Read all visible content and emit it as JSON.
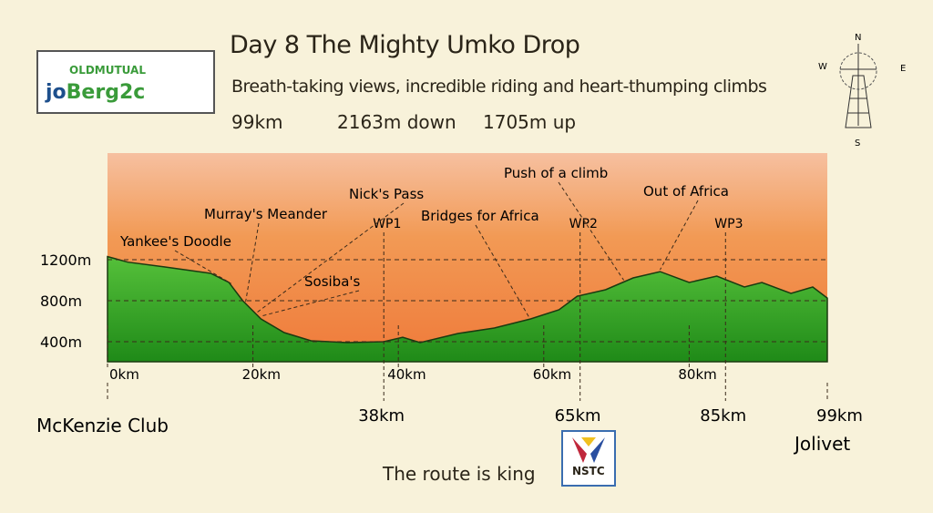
{
  "header": {
    "title": "Day 8  The Mighty Umko Drop",
    "subtitle": "Breath-taking views, incredible riding and heart-thumping climbs",
    "distance": "99km",
    "descent": "2163m down",
    "ascent": "1705m up"
  },
  "logo": {
    "brand": "OLDMUTUAL",
    "event_prefix": "jo",
    "event": "Berg2c"
  },
  "compass": {
    "n": "N",
    "e": "E",
    "s": "S",
    "w": "W"
  },
  "footer": {
    "tagline": "The route is king",
    "sponsor": "NSTC"
  },
  "colors": {
    "sky_top": "#f4a878",
    "sky_mid": "#f08a4a",
    "ground": "#3aa82a",
    "ground_dark": "#1f7a18"
  },
  "chart_data": {
    "type": "area",
    "title": "Day 8 The Mighty Umko Drop",
    "xlabel": "km",
    "ylabel": "m",
    "xlim": [
      0,
      99
    ],
    "ylim": [
      200,
      2200
    ],
    "x_ticks": [
      {
        "v": 0,
        "label": "0km"
      },
      {
        "v": 20,
        "label": "20km"
      },
      {
        "v": 40,
        "label": "40km"
      },
      {
        "v": 60,
        "label": "60km"
      },
      {
        "v": 80,
        "label": "80km"
      }
    ],
    "y_ticks": [
      {
        "v": 1200,
        "label": "1200m"
      },
      {
        "v": 800,
        "label": "800m"
      },
      {
        "v": 400,
        "label": "400m"
      }
    ],
    "profile": {
      "km": [
        0,
        2.8,
        7.8,
        14.2,
        16.7,
        18.6,
        21.1,
        24.3,
        28,
        33,
        38,
        40.6,
        43,
        48.2,
        53.2,
        58.2,
        62.1,
        64.6,
        68.5,
        72.3,
        76,
        80,
        83.8,
        87.6,
        90,
        94,
        97,
        99
      ],
      "m": [
        1230,
        1176,
        1130,
        1067,
        978,
        800,
        622,
        489,
        409,
        391,
        400,
        444,
        391,
        480,
        533,
        622,
        711,
        844,
        907,
        1022,
        1084,
        978,
        1040,
        933,
        978,
        871,
        933,
        826
      ]
    },
    "markers": [
      {
        "km": 0,
        "label": "0km",
        "place": "McKenzie Club"
      },
      {
        "km": 38,
        "label": "38km",
        "wp": "WP1"
      },
      {
        "km": 65,
        "label": "65km",
        "wp": "WP2"
      },
      {
        "km": 85,
        "label": "85km",
        "wp": "WP3"
      },
      {
        "km": 99,
        "label": "99km",
        "place": "Jolivet"
      }
    ],
    "annotations": [
      {
        "label": "Yankee's Doodle",
        "km": 17
      },
      {
        "label": "Murray's Meander",
        "km": 19
      },
      {
        "label": "Nick's Pass",
        "km": 20.5
      },
      {
        "label": "Sosiba's",
        "km": 21
      },
      {
        "label": "Bridges for Africa",
        "km": 58
      },
      {
        "label": "Push of a climb",
        "km": 71
      },
      {
        "label": "Out of Africa",
        "km": 76
      }
    ]
  }
}
